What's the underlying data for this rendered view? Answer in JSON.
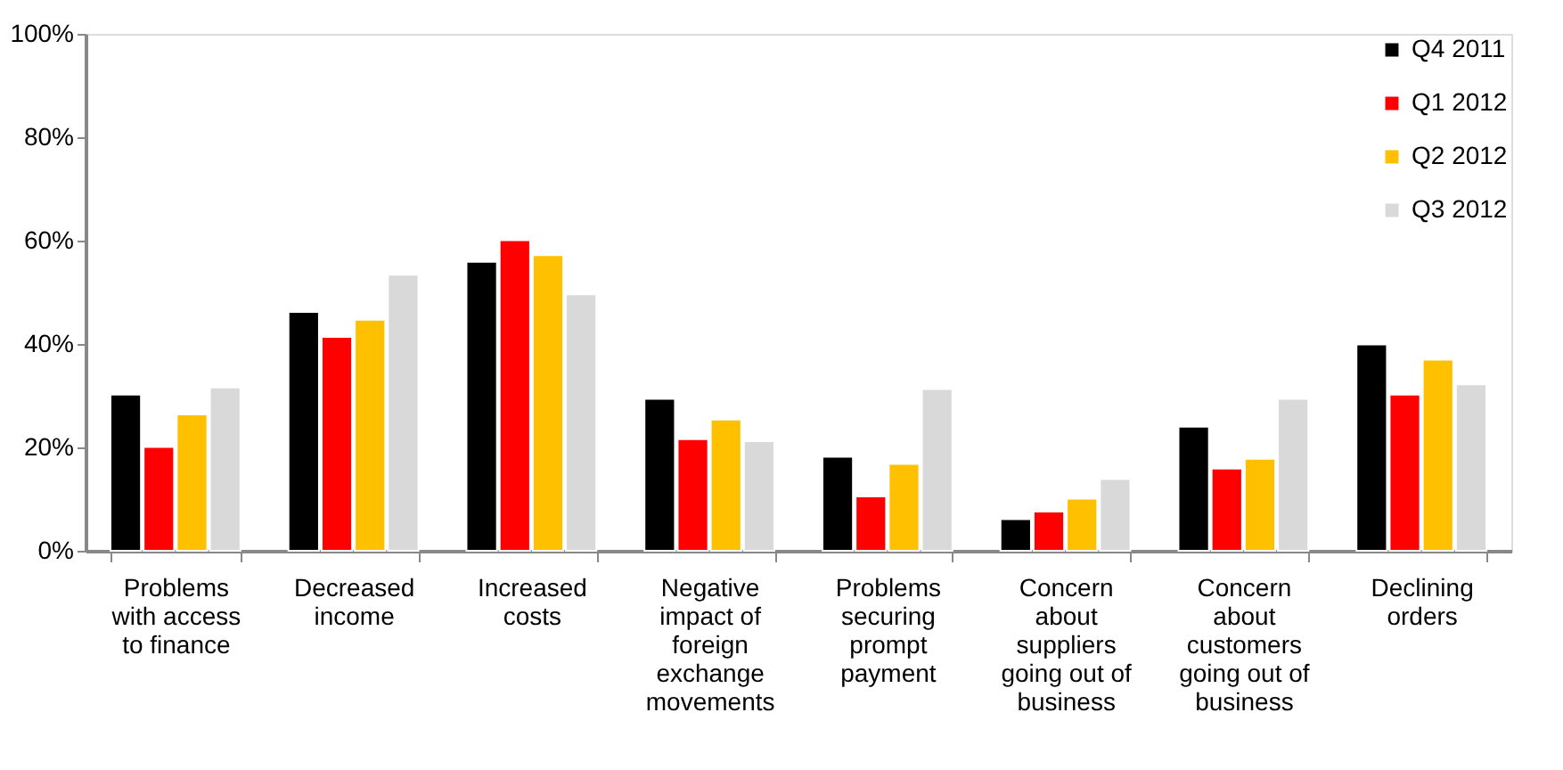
{
  "chart_data": {
    "type": "bar",
    "categories": [
      "Problems with access to finance",
      "Decreased income",
      "Increased costs",
      "Negative impact of foreign exchange movements",
      "Problems securing prompt payment",
      "Concern about suppliers going out of business",
      "Concern about customers going out of business",
      "Declining orders"
    ],
    "series": [
      {
        "name": "Q4 2011",
        "color": "#000000",
        "values": [
          30.2,
          46.2,
          55.9,
          29.4,
          18.2,
          6.1,
          24.0,
          39.9
        ]
      },
      {
        "name": "Q1 2012",
        "color": "#ff0000",
        "values": [
          20.1,
          41.4,
          60.1,
          21.6,
          10.5,
          7.6,
          15.9,
          30.2
        ]
      },
      {
        "name": "Q2 2012",
        "color": "#ffc000",
        "values": [
          26.4,
          44.7,
          57.2,
          25.4,
          16.8,
          10.1,
          17.8,
          37.0
        ]
      },
      {
        "name": "Q3 2012",
        "color": "#d9d9d9",
        "values": [
          31.6,
          53.4,
          49.6,
          21.2,
          31.3,
          13.9,
          29.4,
          32.2
        ]
      }
    ],
    "ylim": [
      0,
      100
    ],
    "yticks": [
      {
        "value": 0,
        "label": "0%"
      },
      {
        "value": 20,
        "label": "20%"
      },
      {
        "value": 40,
        "label": "40%"
      },
      {
        "value": 60,
        "label": "60%"
      },
      {
        "value": 80,
        "label": "80%"
      },
      {
        "value": 100,
        "label": "100%"
      }
    ],
    "grid": false,
    "legend": "top right"
  }
}
